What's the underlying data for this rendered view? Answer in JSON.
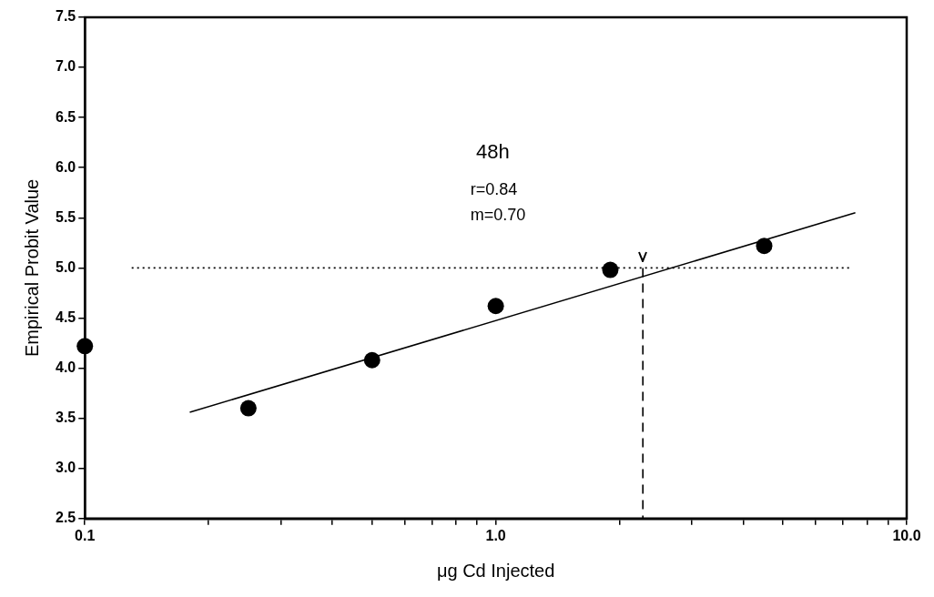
{
  "chart_data": {
    "type": "scatter",
    "xlabel": "μg Cd Injected",
    "ylabel": "Empirical Probit Value",
    "annotations": [
      "48h",
      "r=0.84",
      "m=0.70"
    ],
    "log": "x",
    "grid": false,
    "xlim": [
      0.1,
      10
    ],
    "ylim": [
      2.5,
      7.5
    ],
    "xticks": [
      {
        "value": 0.1,
        "label": "0.1"
      },
      {
        "value": 0.2,
        "label": null
      },
      {
        "value": 0.3,
        "label": null
      },
      {
        "value": 0.4,
        "label": null
      },
      {
        "value": 0.5,
        "label": null
      },
      {
        "value": 0.6,
        "label": null
      },
      {
        "value": 0.7,
        "label": null
      },
      {
        "value": 0.8,
        "label": null
      },
      {
        "value": 0.9,
        "label": null
      },
      {
        "value": 1,
        "label": "1.0"
      },
      {
        "value": 2,
        "label": null
      },
      {
        "value": 3,
        "label": null
      },
      {
        "value": 4,
        "label": null
      },
      {
        "value": 5,
        "label": null
      },
      {
        "value": 6,
        "label": null
      },
      {
        "value": 7,
        "label": null
      },
      {
        "value": 8,
        "label": null
      },
      {
        "value": 9,
        "label": null
      },
      {
        "value": 10,
        "label": "10.0"
      }
    ],
    "yticks": [
      {
        "value": 2.5,
        "label": "2.5"
      },
      {
        "value": 3,
        "label": "3.0"
      },
      {
        "value": 3.5,
        "label": "3.5"
      },
      {
        "value": 4,
        "label": "4.0"
      },
      {
        "value": 4.5,
        "label": "4.5"
      },
      {
        "value": 5,
        "label": "5.0"
      },
      {
        "value": 5.5,
        "label": "5.5"
      },
      {
        "value": 6,
        "label": "6.0"
      },
      {
        "value": 6.5,
        "label": "6.5"
      },
      {
        "value": 7,
        "label": "7.0"
      },
      {
        "value": 7.5,
        "label": "7.5"
      }
    ],
    "series": [
      {
        "color": "#000000",
        "marker": "circle",
        "x": [
          0.1,
          0.25,
          0.5,
          1.0,
          1.9,
          4.5
        ],
        "values": [
          4.22,
          3.6,
          4.08,
          4.62,
          4.98,
          5.22
        ]
      },
      {
        "type": "line",
        "color": "#000000",
        "marker": "none",
        "line_style": "solid",
        "x": [
          0.18,
          7.5
        ],
        "values": [
          3.56,
          5.55
        ]
      },
      {
        "type": "line",
        "color": "#000000",
        "marker": "none",
        "line_style": "dotted",
        "x": [
          0.13,
          7.3
        ],
        "values": [
          5.0,
          5.0
        ]
      },
      {
        "type": "line",
        "color": "#000000",
        "marker": "none",
        "line_style": "dashed",
        "x": [
          2.28,
          2.28
        ],
        "values": [
          5.0,
          2.5
        ]
      }
    ]
  }
}
